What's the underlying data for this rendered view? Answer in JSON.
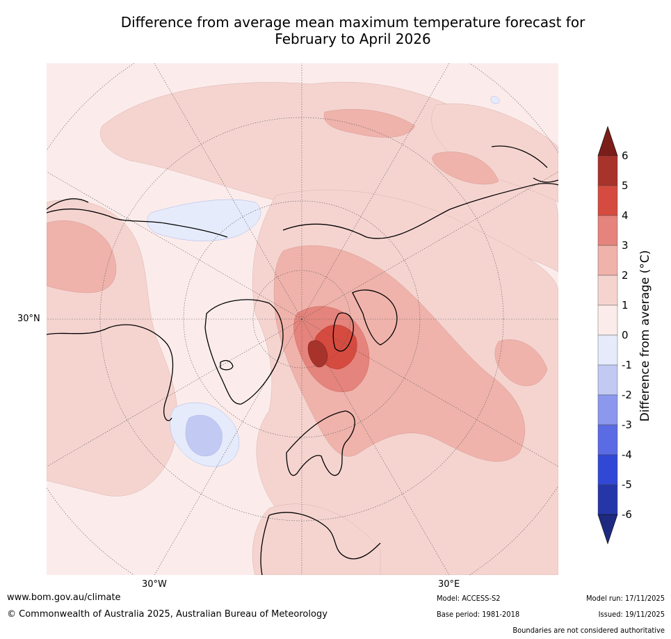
{
  "title_line1": "Difference from average mean maximum temperature forecast for",
  "title_line2": "February to April 2026",
  "map": {
    "projection": "north polar stereographic",
    "lat_label": "30°N",
    "lon_labels": [
      "30°W",
      "30°E"
    ],
    "features": {
      "hot_spot": "western Siberia / Barents-Kara region, +5 to +6",
      "cool_patch": "north-west Atlantic / Labrador Sea, -1 to -2",
      "arctic_ocean_cool": "Beaufort Sea, 0 to -1"
    }
  },
  "colorbar": {
    "label": "Difference from average (°C)",
    "ticks": [
      "6",
      "5",
      "4",
      "3",
      "2",
      "1",
      "0",
      "-1",
      "-2",
      "-3",
      "-4",
      "-5",
      "-6"
    ],
    "colors": [
      "#7b1e1a",
      "#a8332b",
      "#d64b3f",
      "#e5847c",
      "#efb3ab",
      "#f5d4d0",
      "#fbeceb",
      "#e6ebfb",
      "#c2c9f3",
      "#8b98ee",
      "#5b6be3",
      "#3148d6",
      "#2636a8",
      "#1e2a80"
    ]
  },
  "footer": {
    "url": "www.bom.gov.au/climate",
    "copyright": "© Commonwealth of Australia 2025, Australian Bureau of Meteorology",
    "model": "Model: ACCESS-S2",
    "base_period": "Base period: 1981-2018",
    "model_run": "Model run: 17/11/2025",
    "issued": "Issued: 19/11/2025",
    "disclaimer": "Boundaries are not considered authoritative"
  }
}
